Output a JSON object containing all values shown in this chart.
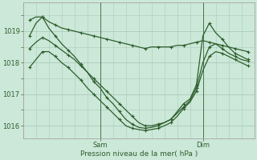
{
  "xlabel": "Pression niveau de la mer( hPa )",
  "bg_color": "#cce8d8",
  "line_color": "#2d5e2d",
  "grid_color": "#aaccb8",
  "ylim": [
    1015.6,
    1019.9
  ],
  "yticks": [
    1016,
    1017,
    1018,
    1019
  ],
  "xtick_labels": [
    "Sam",
    "Dim"
  ],
  "sam_x": 12,
  "dim_x": 28,
  "xlim": [
    0,
    36
  ],
  "series": [
    {
      "x": [
        1,
        2,
        3,
        4,
        5,
        6,
        7,
        8,
        9,
        10,
        11,
        12,
        13,
        14,
        15,
        16,
        17,
        18,
        19,
        20,
        21,
        22,
        23,
        24,
        25,
        26,
        27,
        28,
        29,
        30,
        31,
        32,
        33,
        34,
        35
      ],
      "y": [
        1019.35,
        1019.45,
        1019.45,
        1019.3,
        1019.2,
        1019.1,
        1019.05,
        1019.0,
        1018.95,
        1018.9,
        1018.85,
        1018.8,
        1018.75,
        1018.7,
        1018.65,
        1018.6,
        1018.55,
        1018.5,
        1018.45,
        1018.5,
        1018.5,
        1018.5,
        1018.5,
        1018.55,
        1018.55,
        1018.6,
        1018.65,
        1018.7,
        1018.65,
        1018.6,
        1018.55,
        1018.5,
        1018.45,
        1018.4,
        1018.35
      ]
    },
    {
      "x": [
        1,
        2,
        3,
        4,
        5,
        6,
        7,
        8,
        9,
        10,
        11,
        12,
        13,
        14,
        15,
        16,
        17,
        18,
        19,
        20,
        21,
        22,
        23,
        24,
        25,
        26,
        27,
        28,
        29,
        30,
        31,
        32,
        33,
        34,
        35
      ],
      "y": [
        1018.85,
        1019.25,
        1019.45,
        1019.1,
        1018.85,
        1018.6,
        1018.4,
        1018.2,
        1017.95,
        1017.7,
        1017.4,
        1017.2,
        1016.9,
        1016.7,
        1016.45,
        1016.2,
        1016.05,
        1015.95,
        1015.92,
        1015.95,
        1016.0,
        1016.1,
        1016.2,
        1016.45,
        1016.7,
        1016.85,
        1017.3,
        1018.85,
        1019.25,
        1018.95,
        1018.75,
        1018.5,
        1018.3,
        1018.2,
        1018.1
      ]
    },
    {
      "x": [
        1,
        2,
        3,
        4,
        5,
        6,
        7,
        8,
        9,
        10,
        11,
        12,
        13,
        14,
        15,
        16,
        17,
        18,
        19,
        20,
        21,
        22,
        23,
        24,
        25,
        26,
        27,
        28,
        29,
        30,
        31,
        32,
        33,
        34,
        35
      ],
      "y": [
        1018.45,
        1018.65,
        1018.8,
        1018.7,
        1018.55,
        1018.4,
        1018.25,
        1018.1,
        1017.9,
        1017.7,
        1017.5,
        1017.3,
        1017.1,
        1016.9,
        1016.7,
        1016.5,
        1016.3,
        1016.1,
        1016.0,
        1016.0,
        1016.05,
        1016.1,
        1016.2,
        1016.4,
        1016.6,
        1016.8,
        1017.2,
        1018.0,
        1018.5,
        1018.6,
        1018.45,
        1018.3,
        1018.2,
        1018.1,
        1018.05
      ]
    },
    {
      "x": [
        1,
        2,
        3,
        4,
        5,
        6,
        7,
        8,
        9,
        10,
        11,
        12,
        13,
        14,
        15,
        16,
        17,
        18,
        19,
        20,
        21,
        22,
        23,
        24,
        25,
        26,
        27,
        28,
        29,
        30,
        31,
        32,
        33,
        34,
        35
      ],
      "y": [
        1017.85,
        1018.1,
        1018.35,
        1018.35,
        1018.2,
        1018.0,
        1017.85,
        1017.65,
        1017.45,
        1017.2,
        1017.0,
        1016.8,
        1016.6,
        1016.4,
        1016.2,
        1016.0,
        1015.92,
        1015.88,
        1015.85,
        1015.88,
        1015.92,
        1016.0,
        1016.1,
        1016.3,
        1016.55,
        1016.75,
        1017.1,
        1017.75,
        1018.2,
        1018.35,
        1018.3,
        1018.2,
        1018.1,
        1018.0,
        1017.9
      ]
    }
  ]
}
